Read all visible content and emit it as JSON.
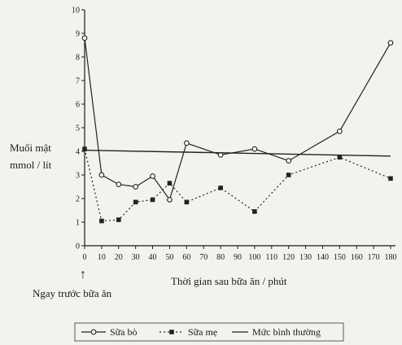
{
  "chart_data": {
    "type": "line",
    "title": "",
    "ylabel_line1": "Muối mật",
    "ylabel_line2": "mmol / lít",
    "xlabel": "Thời gian sau bữa ăn / phút",
    "x_annotation": "Ngay trước bữa ăn",
    "x_annotation_arrow": "↑",
    "xlim": [
      0,
      180
    ],
    "ylim": [
      0,
      10
    ],
    "x_ticks": [
      0,
      10,
      20,
      30,
      40,
      50,
      60,
      70,
      80,
      90,
      100,
      110,
      120,
      130,
      140,
      150,
      160,
      170,
      180
    ],
    "y_ticks": [
      0,
      1,
      2,
      3,
      4,
      5,
      6,
      7,
      8,
      9,
      10
    ],
    "grid": false,
    "legend_position": "bottom-center",
    "series": [
      {
        "name": "Sữa bò",
        "marker": "circle",
        "style": "solid",
        "color": "#222222",
        "x": [
          0,
          10,
          20,
          30,
          40,
          50,
          60,
          80,
          100,
          120,
          150,
          180
        ],
        "values": [
          8.8,
          3.0,
          2.6,
          2.5,
          2.95,
          1.95,
          4.35,
          3.85,
          4.1,
          3.6,
          4.85,
          8.6
        ]
      },
      {
        "name": "Sữa mẹ",
        "marker": "square",
        "style": "dotted",
        "color": "#222222",
        "x": [
          0,
          10,
          20,
          30,
          40,
          50,
          60,
          80,
          100,
          120,
          150,
          180
        ],
        "values": [
          4.1,
          1.05,
          1.1,
          1.85,
          1.95,
          2.65,
          1.85,
          2.45,
          1.45,
          3.0,
          3.75,
          2.85
        ]
      },
      {
        "name": "Mức bình thường",
        "marker": "none",
        "style": "solid",
        "color": "#222222",
        "x": [
          0,
          180
        ],
        "values": [
          4.05,
          3.8
        ]
      }
    ]
  }
}
